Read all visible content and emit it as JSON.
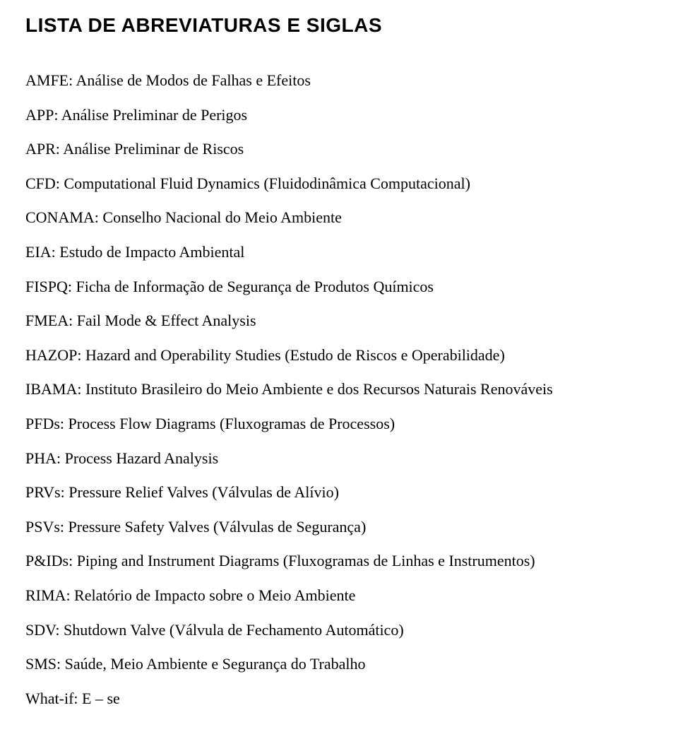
{
  "title": "LISTA DE  ABREVIATURAS E SIGLAS",
  "entries": [
    "AMFE: Análise de Modos de Falhas e Efeitos",
    "APP: Análise Preliminar de Perigos",
    "APR: Análise Preliminar de Riscos",
    "CFD: Computational Fluid Dynamics (Fluidodinâmica Computacional)",
    "CONAMA: Conselho Nacional do Meio Ambiente",
    "EIA: Estudo de Impacto Ambiental",
    "FISPQ: Ficha de Informação de Segurança de Produtos Químicos",
    "FMEA: Fail Mode & Effect Analysis",
    "HAZOP: Hazard and Operability Studies (Estudo de Riscos e Operabilidade)",
    "IBAMA: Instituto Brasileiro do Meio Ambiente e dos Recursos Naturais Renováveis",
    "PFDs: Process Flow Diagrams (Fluxogramas de Processos)",
    "PHA: Process Hazard Analysis",
    "PRVs: Pressure Relief Valves (Válvulas de Alívio)",
    "PSVs: Pressure Safety Valves (Válvulas de Segurança)",
    "P&IDs: Piping and Instrument Diagrams (Fluxogramas de Linhas e Instrumentos)",
    "RIMA: Relatório de Impacto sobre o Meio Ambiente",
    "SDV: Shutdown Valve (Válvula de Fechamento Automático)",
    "SMS: Saúde, Meio Ambiente e Segurança do Trabalho",
    "What-if: E – se"
  ]
}
